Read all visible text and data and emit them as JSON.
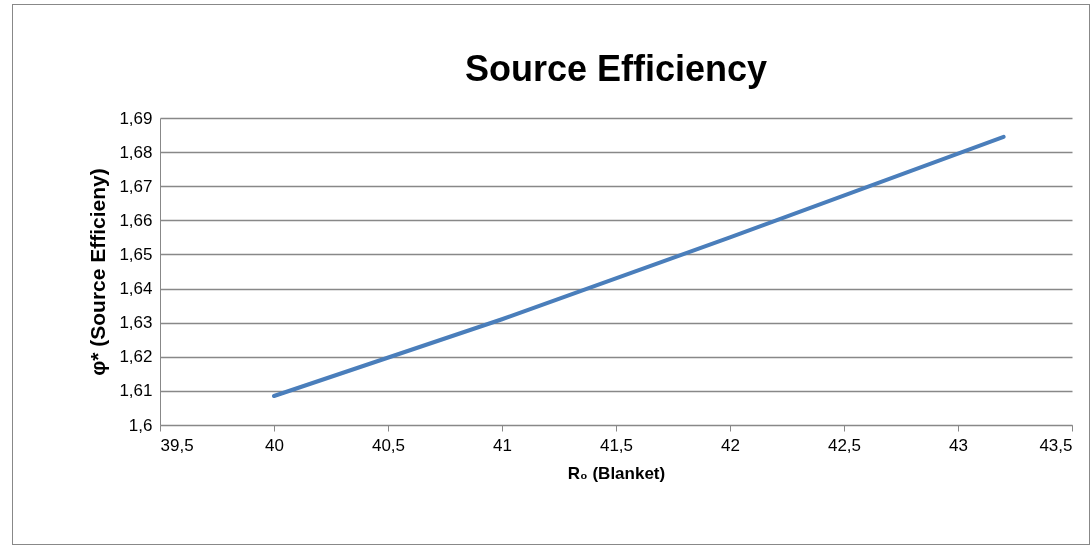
{
  "chart_data": {
    "type": "line",
    "title": "Source Efficiency",
    "xlabel": "R₀ (Blanket)",
    "ylabel": "φ* (Source Efficieny)",
    "x": [
      40,
      41,
      42,
      43.2
    ],
    "series": [
      {
        "color": "#4a7ebb",
        "values": [
          1.6085,
          1.631,
          1.655,
          1.6845
        ]
      }
    ],
    "xlim": [
      39.5,
      43.5
    ],
    "xticks": [
      {
        "value": 39.5,
        "label": "39,5"
      },
      {
        "value": 40,
        "label": "40"
      },
      {
        "value": 40.5,
        "label": "40,5"
      },
      {
        "value": 41,
        "label": "41"
      },
      {
        "value": 41.5,
        "label": "41,5"
      },
      {
        "value": 42,
        "label": "42"
      },
      {
        "value": 42.5,
        "label": "42,5"
      },
      {
        "value": 43,
        "label": "43"
      },
      {
        "value": 43.5,
        "label": "43,5"
      }
    ],
    "ylim": [
      1.6,
      1.69
    ],
    "yticks": [
      {
        "value": 1.6,
        "label": "1,6"
      },
      {
        "value": 1.61,
        "label": "1,61"
      },
      {
        "value": 1.62,
        "label": "1,62"
      },
      {
        "value": 1.63,
        "label": "1,63"
      },
      {
        "value": 1.64,
        "label": "1,64"
      },
      {
        "value": 1.65,
        "label": "1,65"
      },
      {
        "value": 1.66,
        "label": "1,66"
      },
      {
        "value": 1.67,
        "label": "1,67"
      },
      {
        "value": 1.68,
        "label": "1,68"
      },
      {
        "value": 1.69,
        "label": "1,69"
      }
    ],
    "grid": "y",
    "marker": "none",
    "line_style": "solid"
  }
}
